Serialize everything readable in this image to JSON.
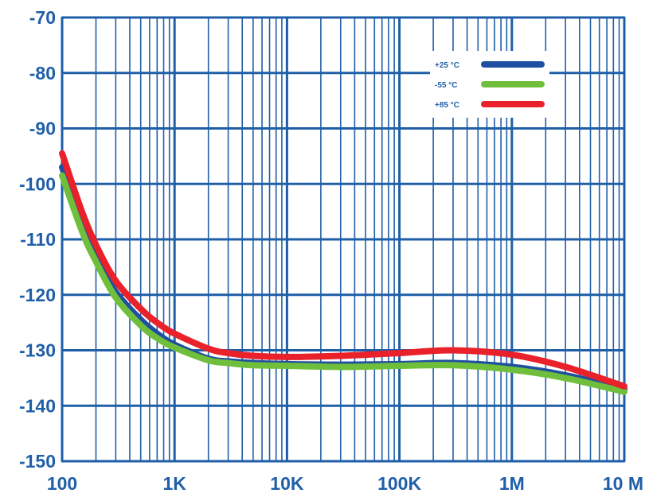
{
  "chart_data": {
    "type": "line",
    "x_scale": "log",
    "xlim": [
      100,
      10000000
    ],
    "ylim": [
      -150,
      -70
    ],
    "grid": true,
    "legend_position": "top-right",
    "x_ticks": [
      {
        "value": 100,
        "label": "100"
      },
      {
        "value": 1000,
        "label": "1K"
      },
      {
        "value": 10000,
        "label": "10K"
      },
      {
        "value": 100000,
        "label": "100K"
      },
      {
        "value": 1000000,
        "label": "1M"
      },
      {
        "value": 10000000,
        "label": "10 M"
      }
    ],
    "y_ticks": [
      {
        "value": -70,
        "label": "-70"
      },
      {
        "value": -80,
        "label": "-80"
      },
      {
        "value": -90,
        "label": "-90"
      },
      {
        "value": -100,
        "label": "-100"
      },
      {
        "value": -110,
        "label": "-110"
      },
      {
        "value": -120,
        "label": "-120"
      },
      {
        "value": -130,
        "label": "-130"
      },
      {
        "value": -140,
        "label": "-140"
      },
      {
        "value": -150,
        "label": "-150"
      }
    ],
    "series": [
      {
        "name": "+25 °C",
        "color": "#1f4fa0",
        "x": [
          100,
          150,
          200,
          300,
          500,
          700,
          1000,
          2000,
          3000,
          5000,
          10000,
          30000,
          100000,
          300000,
          1000000,
          3000000,
          10000000
        ],
        "y": [
          -97,
          -107,
          -113,
          -119.5,
          -124.5,
          -127,
          -129,
          -131.5,
          -132,
          -132.3,
          -132.5,
          -132.6,
          -132.5,
          -132.3,
          -133,
          -134.5,
          -137
        ]
      },
      {
        "name": "-55 °C",
        "color": "#6fbf3c",
        "x": [
          100,
          150,
          200,
          300,
          500,
          700,
          1000,
          2000,
          3000,
          5000,
          10000,
          30000,
          100000,
          300000,
          1000000,
          3000000,
          10000000
        ],
        "y": [
          -98.5,
          -108.5,
          -114,
          -120.5,
          -125.5,
          -127.8,
          -129.5,
          -131.8,
          -132.3,
          -132.7,
          -132.8,
          -133,
          -132.8,
          -132.7,
          -133.5,
          -135,
          -137.5
        ]
      },
      {
        "name": "+85 °C",
        "color": "#e8212a",
        "x": [
          100,
          150,
          200,
          300,
          500,
          700,
          1000,
          2000,
          3000,
          5000,
          10000,
          30000,
          100000,
          300000,
          1000000,
          3000000,
          10000000
        ],
        "y": [
          -94.5,
          -105,
          -111,
          -117.5,
          -122.5,
          -125,
          -127,
          -129.7,
          -130.5,
          -131,
          -131.2,
          -131,
          -130.5,
          -130,
          -130.8,
          -133,
          -136.5
        ]
      }
    ]
  }
}
